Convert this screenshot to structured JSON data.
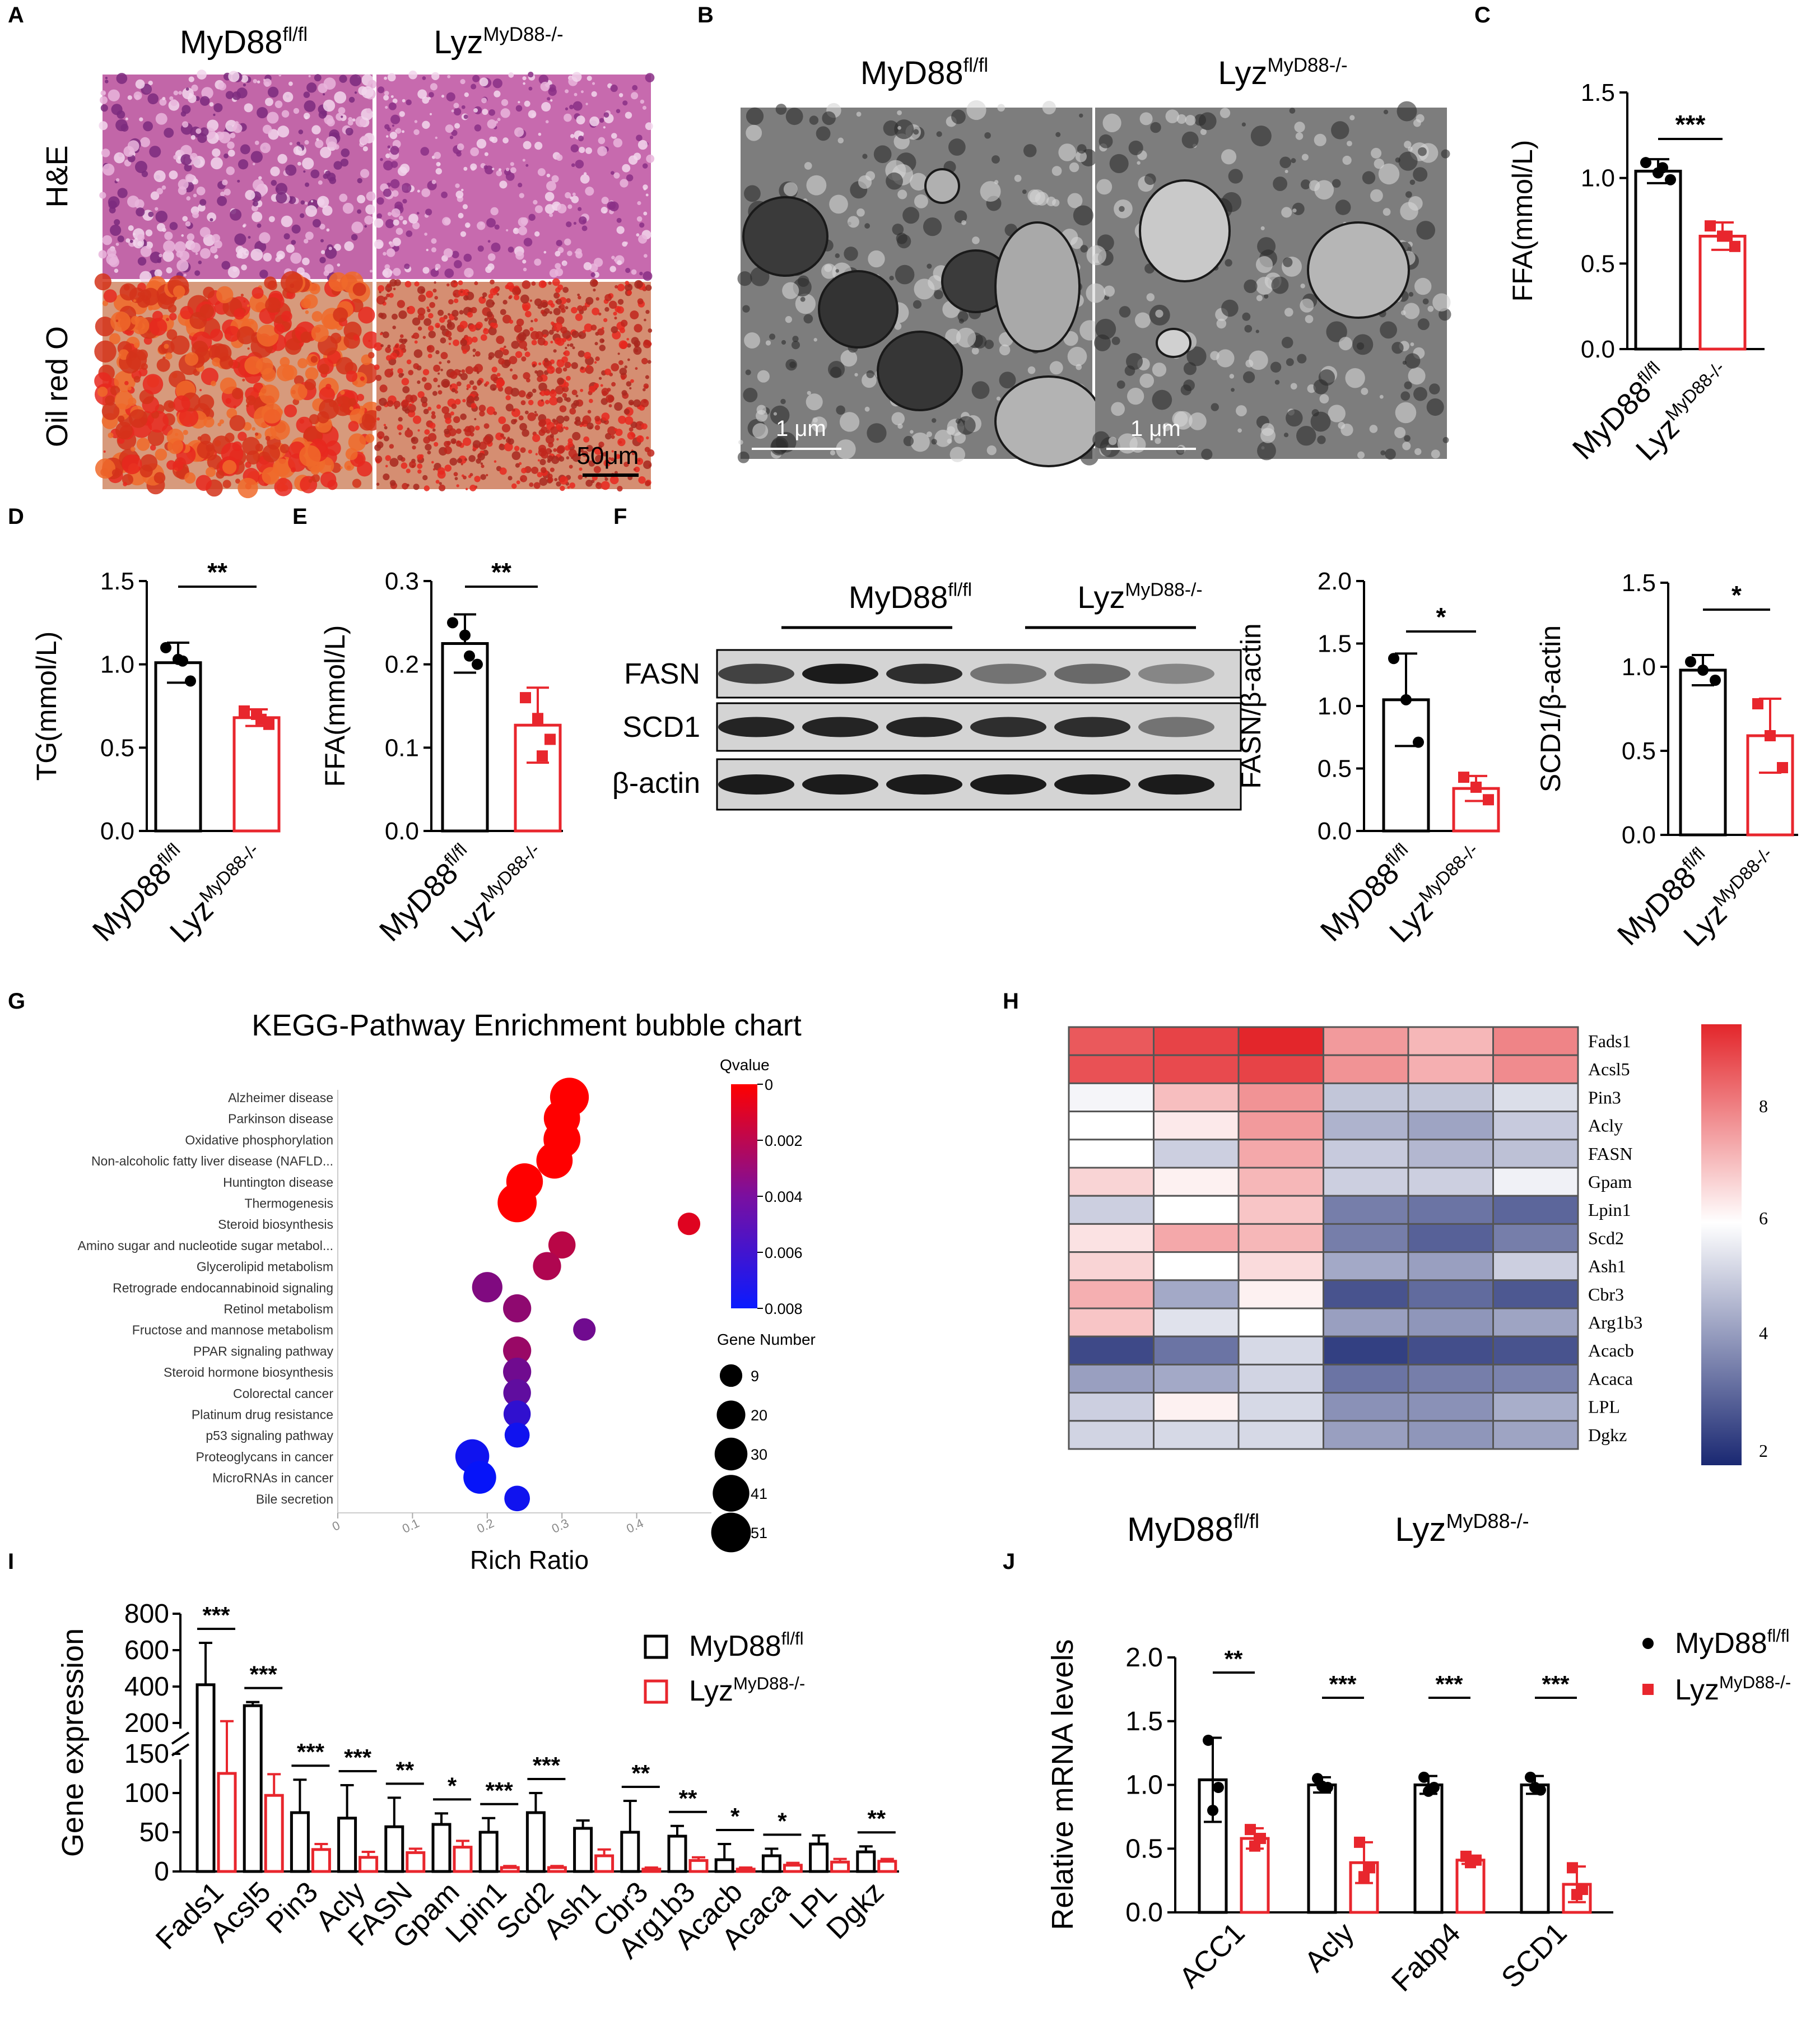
{
  "panel_letters": [
    "A",
    "B",
    "C",
    "D",
    "E",
    "F",
    "G",
    "H",
    "I",
    "J"
  ],
  "groups": {
    "wt": "MyD88",
    "wt_sup": "fl/fl",
    "ko": "Lyz",
    "ko_sup": "MyD88-/-"
  },
  "colors": {
    "wt": "#000000",
    "ko": "#e8262d",
    "bubble_high": "#ff0000",
    "bubble_mid": "#7a0fa0",
    "bubble_low": "#0a1aff",
    "heat_high": "#e3262b",
    "heat_mid": "#ffffff",
    "heat_low": "#1a2872"
  },
  "panelA": {
    "row_labels": [
      "H&E",
      "Oil red O"
    ],
    "scale_bar": "50μm"
  },
  "panelB": {
    "scale_bar": "1 μm"
  },
  "panelF": {
    "bands": [
      "FASN",
      "SCD1",
      "β-actin"
    ]
  },
  "panelH": {
    "legend_ticks": [
      "8",
      "6",
      "4",
      "2"
    ]
  },
  "chart_data": [
    {
      "panel": "C",
      "type": "bar",
      "categories": [
        "MyD88fl/fl",
        "LyzMyD88-/-"
      ],
      "values": [
        1.04,
        0.66
      ],
      "errors": [
        0.07,
        0.08
      ],
      "points": [
        [
          1.09,
          1.03,
          0.99,
          1.06
        ],
        [
          0.72,
          0.66,
          0.6,
          0.66
        ]
      ],
      "ylabel": "FFA(mmol/L)",
      "ylim": [
        0,
        1.5
      ],
      "yticks": [
        "0.0",
        "0.5",
        "1.0",
        "1.5"
      ],
      "significance": "***"
    },
    {
      "panel": "D",
      "type": "bar",
      "categories": [
        "MyD88fl/fl",
        "LyzMyD88-/-"
      ],
      "values": [
        1.01,
        0.68
      ],
      "errors": [
        0.12,
        0.05
      ],
      "points": [
        [
          1.1,
          1.03,
          0.9,
          1.02
        ],
        [
          0.72,
          0.7,
          0.64,
          0.67
        ]
      ],
      "ylabel": "TG(mmol/L)",
      "ylim": [
        0,
        1.5
      ],
      "yticks": [
        "0.0",
        "0.5",
        "1.0",
        "1.5"
      ],
      "significance": "**"
    },
    {
      "panel": "E",
      "type": "bar",
      "categories": [
        "MyD88fl/fl",
        "LyzMyD88-/-"
      ],
      "values": [
        0.225,
        0.127
      ],
      "errors": [
        0.035,
        0.045
      ],
      "points": [
        [
          0.25,
          0.235,
          0.2,
          0.21
        ],
        [
          0.16,
          0.135,
          0.11,
          0.09
        ]
      ],
      "ylabel": "FFA(mmol/L)",
      "ylim": [
        0,
        0.3
      ],
      "yticks": [
        "0.0",
        "0.1",
        "0.2",
        "0.3"
      ],
      "significance": "**"
    },
    {
      "panel": "F1",
      "type": "bar",
      "categories": [
        "MyD88fl/fl",
        "LyzMyD88-/-"
      ],
      "values": [
        1.05,
        0.34
      ],
      "errors": [
        0.37,
        0.1
      ],
      "points": [
        [
          1.38,
          1.05,
          0.71
        ],
        [
          0.43,
          0.35,
          0.25
        ]
      ],
      "ylabel": "FASN/β-actin",
      "ylim": [
        0,
        2.0
      ],
      "yticks": [
        "0.0",
        "0.5",
        "1.0",
        "1.5",
        "2.0"
      ],
      "significance": "*"
    },
    {
      "panel": "F2",
      "type": "bar",
      "categories": [
        "MyD88fl/fl",
        "LyzMyD88-/-"
      ],
      "values": [
        0.98,
        0.59
      ],
      "errors": [
        0.09,
        0.22
      ],
      "points": [
        [
          1.03,
          0.98,
          0.92
        ],
        [
          0.78,
          0.59,
          0.4
        ]
      ],
      "ylabel": "SCD1/β-actin",
      "ylim": [
        0,
        1.5
      ],
      "yticks": [
        "0.0",
        "0.5",
        "1.0",
        "1.5"
      ],
      "significance": "*"
    },
    {
      "panel": "G",
      "type": "scatter",
      "title": "KEGG-Pathway Enrichment bubble chart",
      "xlabel": "Rich Ratio",
      "xlim": [
        0,
        0.5
      ],
      "xticks": [
        "0",
        "0.1",
        "0.2",
        "0.3",
        "0.4"
      ],
      "categories": [
        "Alzheimer disease",
        "Parkinson disease",
        "Oxidative phosphorylation",
        "Non-alcoholic fatty liver disease (NAFLD...",
        "Huntington disease",
        "Thermogenesis",
        "Steroid biosynthesis",
        "Amino sugar and nucleotide sugar metabol...",
        "Glycerolipid metabolism",
        "Retrograde endocannabinoid signaling",
        "Retinol metabolism",
        "Fructose and mannose metabolism",
        "PPAR signaling pathway",
        "Steroid hormone biosynthesis",
        "Colorectal cancer",
        "Platinum drug resistance",
        "p53 signaling pathway",
        "Proteoglycans in cancer",
        "MicroRNAs in cancer",
        "Bile secretion"
      ],
      "rich_ratio": [
        0.31,
        0.3,
        0.3,
        0.29,
        0.25,
        0.24,
        0.47,
        0.3,
        0.28,
        0.2,
        0.24,
        0.33,
        0.24,
        0.24,
        0.24,
        0.24,
        0.24,
        0.18,
        0.19,
        0.24
      ],
      "gene_number": [
        48,
        40,
        42,
        40,
        41,
        49,
        9,
        17,
        19,
        24,
        19,
        9,
        19,
        19,
        18,
        17,
        13,
        33,
        30,
        14
      ],
      "qvalue": [
        0.0,
        0.0,
        0.0,
        0.0,
        0.0,
        0.0,
        0.001,
        0.0022,
        0.0025,
        0.004,
        0.0035,
        0.0045,
        0.0032,
        0.0045,
        0.005,
        0.0065,
        0.0075,
        0.0075,
        0.0078,
        0.0075
      ],
      "legend_title_color": "Qvalue",
      "color_ticks": [
        "0",
        "0.002",
        "0.004",
        "0.006",
        "0.008"
      ],
      "legend_title_size": "Gene Number",
      "size_ticks": [
        9,
        20,
        30,
        41,
        51
      ]
    },
    {
      "panel": "H",
      "type": "heatmap",
      "rows": [
        "Fads1",
        "Acsl5",
        "Pin3",
        "Acly",
        "FASN",
        "Gpam",
        "Lpin1",
        "Scd2",
        "Ash1",
        "Cbr3",
        "Arg1b3",
        "Acacb",
        "Acaca",
        "LPL",
        "Dgkz"
      ],
      "values": [
        [
          8.3,
          8.6,
          9.0,
          7.4,
          7.0,
          7.7
        ],
        [
          8.4,
          8.5,
          8.6,
          7.5,
          7.1,
          7.6
        ],
        [
          5.8,
          6.9,
          7.5,
          4.8,
          4.8,
          5.3
        ],
        [
          6.0,
          6.3,
          7.4,
          4.4,
          4.1,
          4.9
        ],
        [
          6.0,
          5.0,
          7.2,
          4.9,
          4.5,
          4.7
        ],
        [
          6.6,
          6.2,
          7.0,
          5.0,
          5.0,
          5.7
        ],
        [
          5.0,
          6.0,
          6.8,
          3.3,
          3.1,
          2.8
        ],
        [
          6.4,
          7.2,
          7.0,
          3.3,
          2.7,
          3.3
        ],
        [
          6.6,
          6.0,
          6.5,
          4.2,
          4.0,
          5.0
        ],
        [
          7.1,
          4.2,
          6.2,
          2.4,
          2.9,
          2.5
        ],
        [
          6.8,
          5.4,
          6.0,
          4.0,
          3.8,
          4.1
        ],
        [
          2.2,
          3.1,
          5.2,
          2.0,
          2.3,
          2.4
        ],
        [
          4.0,
          4.2,
          5.1,
          3.1,
          3.3,
          3.4
        ],
        [
          5.0,
          6.2,
          5.2,
          3.7,
          3.7,
          4.3
        ],
        [
          5.1,
          5.2,
          5.2,
          4.0,
          3.8,
          4.1
        ]
      ],
      "color_range": [
        1.5,
        9
      ]
    },
    {
      "panel": "I",
      "type": "bar",
      "categories": [
        "Fads1",
        "Acsl5",
        "Pin3",
        "Acly",
        "FASN",
        "Gpam",
        "Lpin1",
        "Scd2",
        "Ash1",
        "Cbr3",
        "Arg1b3",
        "Acacb",
        "Acaca",
        "LPL",
        "Dgkz"
      ],
      "series": [
        {
          "name": "MyD88fl/fl",
          "values": [
            410,
            295,
            75,
            68,
            57,
            60,
            50,
            75,
            55,
            50,
            45,
            15,
            20,
            35,
            25
          ],
          "errors": [
            230,
            20,
            42,
            42,
            37,
            14,
            18,
            25,
            10,
            40,
            13,
            20,
            9,
            11,
            7
          ]
        },
        {
          "name": "LyzMyD88-/-",
          "values": [
            125,
            97,
            28,
            18,
            24,
            31,
            5,
            5,
            20,
            3,
            14,
            3,
            8,
            12,
            13
          ],
          "errors": [
            85,
            27,
            7,
            7,
            5,
            8,
            2,
            2,
            8,
            2,
            4,
            2,
            3,
            4,
            3
          ]
        }
      ],
      "ylabel": "Gene expression",
      "yticks_low": [
        "0",
        "50",
        "100",
        "150"
      ],
      "yticks_high": [
        "200",
        "400",
        "600",
        "800"
      ],
      "axis_break": [
        150,
        200
      ],
      "significance": [
        "***",
        "***",
        "***",
        "***",
        "**",
        "*",
        "***",
        "***",
        "",
        "**",
        "**",
        "*",
        "*",
        "",
        "**"
      ]
    },
    {
      "panel": "J",
      "type": "bar",
      "categories": [
        "ACC1",
        "Acly",
        "Fabp4",
        "SCD1"
      ],
      "series": [
        {
          "name": "MyD88fl/fl",
          "values": [
            1.04,
            1.0,
            1.0,
            1.0
          ],
          "errors": [
            0.33,
            0.06,
            0.07,
            0.07
          ],
          "points": [
            [
              1.35,
              0.98,
              0.8
            ],
            [
              1.05,
              0.98,
              0.99
            ],
            [
              1.06,
              0.98,
              0.95
            ],
            [
              1.06,
              0.96,
              0.98
            ]
          ]
        },
        {
          "name": "LyzMyD88-/-",
          "values": [
            0.58,
            0.39,
            0.41,
            0.22
          ],
          "errors": [
            0.08,
            0.16,
            0.03,
            0.14
          ],
          "points": [
            [
              0.65,
              0.58,
              0.52
            ],
            [
              0.55,
              0.35,
              0.28
            ],
            [
              0.44,
              0.41,
              0.39
            ],
            [
              0.35,
              0.18,
              0.14
            ]
          ]
        }
      ],
      "ylabel": "Relative mRNA levels",
      "ylim": [
        0,
        2.0
      ],
      "yticks": [
        "0.0",
        "0.5",
        "1.0",
        "1.5",
        "2.0"
      ],
      "significance": [
        "**",
        "***",
        "***",
        "***"
      ]
    }
  ]
}
